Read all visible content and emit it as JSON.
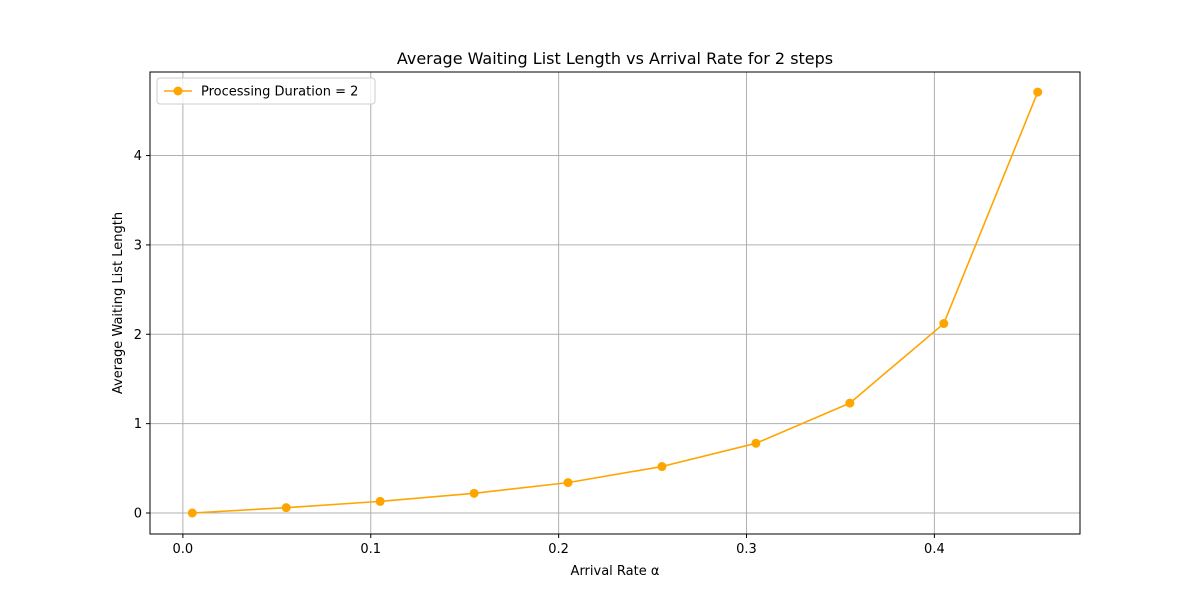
{
  "chart_data": {
    "type": "line",
    "title": "Average Waiting List Length vs Arrival Rate for 2 steps",
    "xlabel": "Arrival Rate α",
    "ylabel": "Average Waiting List Length",
    "xlim": [
      -0.0175,
      0.4775
    ],
    "ylim": [
      -0.235,
      4.935
    ],
    "xticks": [
      0.0,
      0.1,
      0.2,
      0.3,
      0.4
    ],
    "xtick_labels": [
      "0.0",
      "0.1",
      "0.2",
      "0.3",
      "0.4"
    ],
    "yticks": [
      0,
      1,
      2,
      3,
      4
    ],
    "ytick_labels": [
      "0",
      "1",
      "2",
      "3",
      "4"
    ],
    "grid": true,
    "legend_position": "top-left",
    "series": [
      {
        "name": "Processing Duration = 2",
        "color": "#ffa500",
        "marker": "circle",
        "x": [
          0.005,
          0.055,
          0.105,
          0.155,
          0.205,
          0.255,
          0.305,
          0.355,
          0.405,
          0.455
        ],
        "y": [
          0.0,
          0.06,
          0.13,
          0.22,
          0.34,
          0.52,
          0.78,
          1.23,
          2.12,
          4.71
        ]
      }
    ]
  }
}
